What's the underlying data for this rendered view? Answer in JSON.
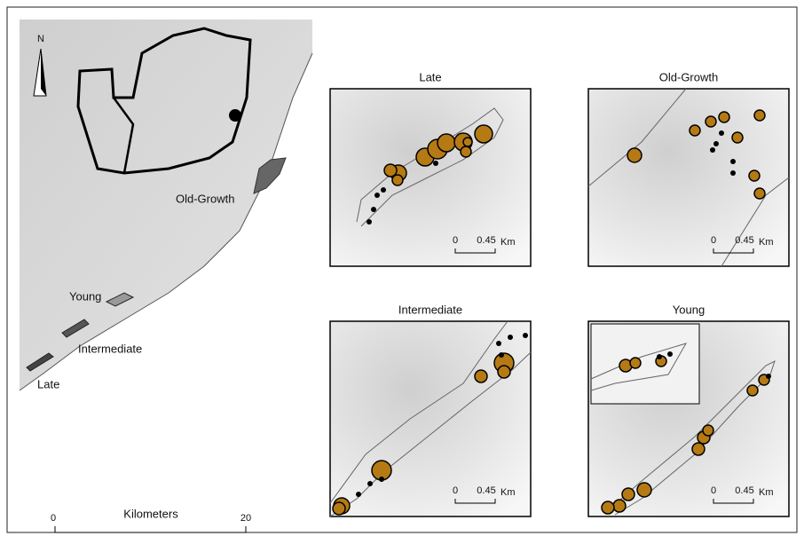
{
  "main_map": {
    "north": "N",
    "labels": [
      "Old-Growth",
      "Young",
      "Intermediate",
      "Late"
    ],
    "scale": {
      "start": "0",
      "title": "Kilometers",
      "end": "20"
    }
  },
  "panels": [
    {
      "title": "Late",
      "scale": {
        "start": "0",
        "end": "0.45",
        "unit": "Km"
      }
    },
    {
      "title": "Old-Growth",
      "scale": {
        "start": "0",
        "end": "0.45",
        "unit": "Km"
      }
    },
    {
      "title": "Intermediate",
      "scale": {
        "start": "0",
        "end": "0.45",
        "unit": "Km"
      }
    },
    {
      "title": "Young",
      "scale": {
        "start": "0",
        "end": "0.45",
        "unit": "Km"
      }
    }
  ]
}
